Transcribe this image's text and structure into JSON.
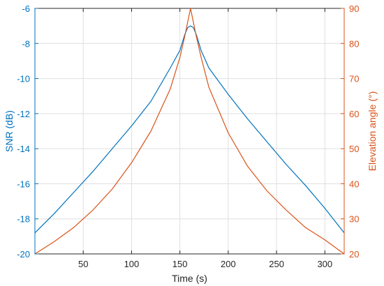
{
  "chart_data": {
    "type": "line",
    "title": "",
    "xlabel": "Time (s)",
    "xlim": [
      0,
      320
    ],
    "xticks": [
      50,
      100,
      150,
      200,
      250,
      300
    ],
    "grid": true,
    "left_axis": {
      "label": "SNR (dB)",
      "color": "#0072BD",
      "ylim": [
        -20,
        -6
      ],
      "ticks": [
        -20,
        -18,
        -16,
        -14,
        -12,
        -10,
        -8,
        -6
      ]
    },
    "right_axis": {
      "label": "Elevation angle (°)",
      "color": "#D95319",
      "ylim": [
        20,
        90
      ],
      "ticks": [
        20,
        30,
        40,
        50,
        60,
        70,
        80,
        90
      ]
    },
    "series": [
      {
        "axis": "left",
        "color": "#0072BD",
        "points": [
          [
            0,
            -18.8
          ],
          [
            20,
            -17.7
          ],
          [
            40,
            -16.5
          ],
          [
            60,
            -15.3
          ],
          [
            80,
            -14.0
          ],
          [
            100,
            -12.7
          ],
          [
            120,
            -11.3
          ],
          [
            140,
            -9.4
          ],
          [
            150,
            -8.4
          ],
          [
            155,
            -7.5
          ],
          [
            158,
            -7.1
          ],
          [
            161,
            -7.0
          ],
          [
            164,
            -7.1
          ],
          [
            167,
            -7.5
          ],
          [
            172,
            -8.4
          ],
          [
            180,
            -9.4
          ],
          [
            200,
            -10.9
          ],
          [
            220,
            -12.3
          ],
          [
            240,
            -13.6
          ],
          [
            260,
            -14.9
          ],
          [
            280,
            -16.1
          ],
          [
            300,
            -17.4
          ],
          [
            320,
            -18.8
          ]
        ]
      },
      {
        "axis": "right",
        "color": "#D95319",
        "points": [
          [
            0,
            20
          ],
          [
            20,
            23.5
          ],
          [
            40,
            27.5
          ],
          [
            60,
            32.5
          ],
          [
            80,
            38.5
          ],
          [
            100,
            46
          ],
          [
            120,
            55
          ],
          [
            140,
            67
          ],
          [
            150,
            76
          ],
          [
            155,
            82
          ],
          [
            161,
            90
          ],
          [
            167,
            82
          ],
          [
            172,
            76
          ],
          [
            180,
            67.5
          ],
          [
            200,
            54.5
          ],
          [
            220,
            45
          ],
          [
            240,
            38
          ],
          [
            260,
            32.5
          ],
          [
            280,
            27.5
          ],
          [
            300,
            24
          ],
          [
            320,
            20
          ]
        ]
      }
    ]
  }
}
